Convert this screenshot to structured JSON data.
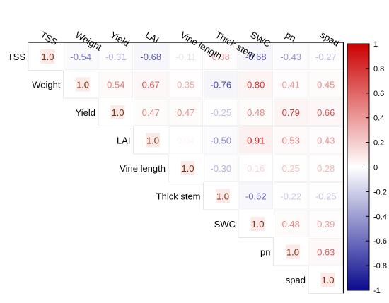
{
  "chart_data": {
    "type": "heatmap",
    "variables": [
      "TSS",
      "Weight",
      "Yield",
      "LAI",
      "Vine length",
      "Thick stem",
      "SWC",
      "pn",
      "spad"
    ],
    "matrix_upper": [
      [
        "1.0",
        "-0.54",
        "-0.31",
        "-0.68",
        "-0.11",
        "0.38",
        "-0.68",
        "-0.43",
        "-0.27"
      ],
      [
        null,
        "1.0",
        "0.54",
        "0.67",
        "0.35",
        "-0.76",
        "0.80",
        "0.41",
        "0.45"
      ],
      [
        null,
        null,
        "1.0",
        "0.47",
        "0.47",
        "-0.25",
        "0.48",
        "0.79",
        "0.66"
      ],
      [
        null,
        null,
        null,
        "1.0",
        "0.04",
        "-0.50",
        "0.91",
        "0.53",
        "0.43"
      ],
      [
        null,
        null,
        null,
        null,
        "1.0",
        "-0.30",
        "0.16",
        "0.25",
        "0.28"
      ],
      [
        null,
        null,
        null,
        null,
        null,
        "1.0",
        "-0.62",
        "-0.22",
        "-0.25"
      ],
      [
        null,
        null,
        null,
        null,
        null,
        null,
        "1.0",
        "0.48",
        "0.39"
      ],
      [
        null,
        null,
        null,
        null,
        null,
        null,
        null,
        "1.0",
        "0.63"
      ],
      [
        null,
        null,
        null,
        null,
        null,
        null,
        null,
        null,
        "1.0"
      ]
    ],
    "colorbar": {
      "range": [
        -1,
        1
      ],
      "ticks": [
        "1",
        "0.8",
        "0.6",
        "0.4",
        "0.2",
        "0",
        "-0.2",
        "-0.4",
        "-0.6",
        "-0.8",
        "-1"
      ],
      "colors": {
        "low": "#0b0b8f",
        "mid": "#ffffff",
        "high": "#cc0000"
      }
    },
    "grid": true
  }
}
